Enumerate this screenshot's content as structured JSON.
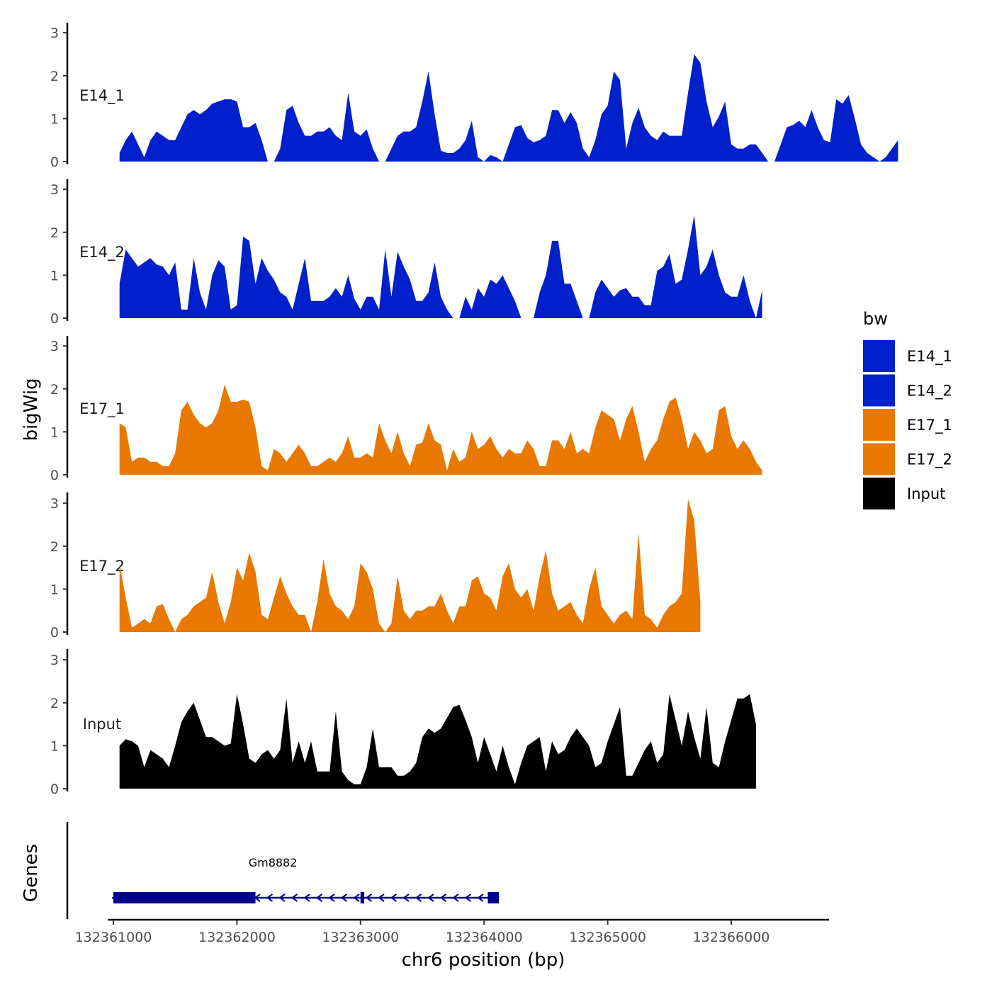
{
  "chart_data": {
    "type": "area",
    "ylabel": "bigWig",
    "xlabel": "chr6 position (bp)",
    "xlim": [
      132360600,
      132366700
    ],
    "ylim": [
      0,
      3.2
    ],
    "y_ticks": [
      0,
      1,
      2,
      3
    ],
    "x_ticks": [
      132361000,
      132362000,
      132363000,
      132364000,
      132365000,
      132366000
    ],
    "x_tick_labels": [
      "132361000",
      "132362000",
      "132363000",
      "132364000",
      "132365000",
      "132366000"
    ],
    "legend": {
      "title": "bw",
      "entries": [
        {
          "name": "E14_1",
          "color": "#0020cc"
        },
        {
          "name": "E14_2",
          "color": "#0020cc"
        },
        {
          "name": "E17_1",
          "color": "#e87800"
        },
        {
          "name": "E17_2",
          "color": "#e87800"
        },
        {
          "name": "Input",
          "color": "#000000"
        }
      ]
    },
    "tracks": [
      {
        "name": "E14_1",
        "color": "#0020cc",
        "x_start": 132361050,
        "x_step": 50,
        "values": [
          0.2,
          0.5,
          0.7,
          0.4,
          0.1,
          0.5,
          0.7,
          0.6,
          0.5,
          0.5,
          0.8,
          1.1,
          1.2,
          1.1,
          1.2,
          1.35,
          1.4,
          1.45,
          1.45,
          1.4,
          0.8,
          0.8,
          0.9,
          0.5,
          0,
          0,
          0.3,
          1.2,
          1.3,
          0.9,
          0.6,
          0.6,
          0.7,
          0.7,
          0.8,
          0.6,
          0.5,
          1.6,
          0.7,
          0.6,
          0.75,
          0.3,
          0,
          0,
          0.3,
          0.6,
          0.7,
          0.7,
          0.8,
          1.4,
          2.1,
          1.1,
          0.25,
          0.2,
          0.2,
          0.3,
          0.5,
          0.95,
          0.1,
          0,
          0.15,
          0.1,
          0,
          0.4,
          0.8,
          0.85,
          0.55,
          0.45,
          0.5,
          0.6,
          1.2,
          1.2,
          0.9,
          1.15,
          0.9,
          0.3,
          0.1,
          0.5,
          1.1,
          1.3,
          2.1,
          1.9,
          0.3,
          0.9,
          1.25,
          0.8,
          0.6,
          0.5,
          0.7,
          0.6,
          0.6,
          0.6,
          1.6,
          2.5,
          2.3,
          1.4,
          0.8,
          1.05,
          1.4,
          0.4,
          0.3,
          0.3,
          0.4,
          0.4,
          0.2,
          0,
          0,
          0.4,
          0.8,
          0.85,
          0.95,
          0.8,
          1.2,
          0.8,
          0.5,
          0.45,
          1.45,
          1.35,
          1.55,
          1.0,
          0.4,
          0.2,
          0.1,
          0,
          0.1,
          0.3,
          0.5
        ]
      },
      {
        "name": "E14_2",
        "color": "#0020cc",
        "x_start": 132361050,
        "x_step": 50,
        "values": [
          0.8,
          1.6,
          1.4,
          1.2,
          1.3,
          1.4,
          1.25,
          1.2,
          1.0,
          1.3,
          0.2,
          0.2,
          1.4,
          0.6,
          0.2,
          1.0,
          1.35,
          1.2,
          0.2,
          0.3,
          1.9,
          1.8,
          0.8,
          1.4,
          1.1,
          0.9,
          0.6,
          0.5,
          0.2,
          0.8,
          1.4,
          0.4,
          0.4,
          0.4,
          0.5,
          0.7,
          0.5,
          1.0,
          0.45,
          0.2,
          0.5,
          0.5,
          0.2,
          1.6,
          0.5,
          1.55,
          1.2,
          0.9,
          0.4,
          0.4,
          0.6,
          1.3,
          0.5,
          0.2,
          0,
          0,
          0.5,
          0.2,
          0.7,
          0.5,
          0.9,
          0.8,
          1.0,
          0.7,
          0.4,
          0,
          0,
          0,
          0.6,
          1.0,
          1.8,
          1.8,
          0.8,
          0.8,
          0.4,
          0,
          0,
          0.6,
          0.9,
          0.7,
          0.5,
          0.65,
          0.7,
          0.5,
          0.5,
          0.3,
          0.3,
          1.1,
          1.2,
          1.5,
          0.8,
          0.9,
          1.6,
          2.4,
          1.0,
          1.2,
          1.6,
          1.0,
          0.6,
          0.5,
          0.5,
          1.0,
          0.4,
          0,
          0.65
        ]
      },
      {
        "name": "E17_1",
        "color": "#e87800",
        "x_start": 132361050,
        "x_step": 50,
        "values": [
          1.2,
          1.1,
          0.3,
          0.4,
          0.4,
          0.3,
          0.3,
          0.2,
          0.2,
          0.5,
          1.5,
          1.7,
          1.4,
          1.2,
          1.1,
          1.2,
          1.5,
          2.1,
          1.7,
          1.7,
          1.75,
          1.7,
          1.1,
          0.2,
          0.1,
          0.6,
          0.5,
          0.3,
          0.5,
          0.7,
          0.5,
          0.2,
          0.2,
          0.3,
          0.4,
          0.3,
          0.5,
          0.9,
          0.4,
          0.4,
          0.5,
          0.4,
          1.2,
          0.8,
          0.5,
          1.0,
          0.5,
          0.2,
          0.7,
          0.75,
          1.2,
          0.8,
          0.7,
          0.1,
          0.6,
          0.3,
          0.4,
          1.0,
          0.6,
          0.7,
          0.9,
          0.6,
          0.4,
          0.6,
          0.5,
          0.5,
          0.8,
          0.6,
          0.2,
          0.2,
          0.8,
          0.8,
          0.6,
          1.0,
          0.5,
          0.6,
          0.5,
          1.1,
          1.5,
          1.4,
          1.3,
          0.8,
          1.3,
          1.6,
          1.0,
          0.3,
          0.6,
          0.8,
          1.3,
          1.7,
          1.8,
          1.3,
          0.6,
          1.0,
          0.8,
          0.5,
          0.6,
          1.5,
          1.6,
          0.9,
          0.6,
          0.8,
          0.6,
          0.3,
          0.1
        ]
      },
      {
        "name": "E17_2",
        "color": "#e87800",
        "x_start": 132361050,
        "x_step": 50,
        "values": [
          1.6,
          0.8,
          0.1,
          0.2,
          0.3,
          0.2,
          0.6,
          0.65,
          0.3,
          0,
          0.3,
          0.4,
          0.6,
          0.7,
          0.8,
          1.4,
          0.7,
          0.2,
          0.7,
          1.5,
          1.2,
          1.85,
          1.4,
          0.4,
          0.3,
          0.8,
          1.3,
          0.9,
          0.6,
          0.4,
          0.4,
          0,
          0.7,
          1.7,
          0.9,
          0.6,
          0.5,
          0.3,
          0.6,
          1.6,
          1.4,
          1.0,
          0.2,
          0,
          0.2,
          1.3,
          0.5,
          0.3,
          0.5,
          0.5,
          0.6,
          0.6,
          0.9,
          0.5,
          0.2,
          0.6,
          0.6,
          1.2,
          1.3,
          0.9,
          0.8,
          0.5,
          1.3,
          1.6,
          1.0,
          0.8,
          1.0,
          0.5,
          1.3,
          1.9,
          0.9,
          0.5,
          0.6,
          0.7,
          0.4,
          0.2,
          1.0,
          1.5,
          0.6,
          0.4,
          0.2,
          0.4,
          0.5,
          0.3,
          2.3,
          0.4,
          0.3,
          0.1,
          0.4,
          0.6,
          0.7,
          0.9,
          3.1,
          2.6,
          0.7
        ]
      },
      {
        "name": "Input",
        "color": "#000000",
        "x_start": 132361050,
        "x_step": 50,
        "values": [
          1.0,
          1.15,
          1.1,
          1.0,
          0.5,
          0.9,
          0.8,
          0.7,
          0.5,
          1.0,
          1.55,
          1.8,
          2.0,
          1.6,
          1.2,
          1.2,
          1.1,
          1.0,
          1.05,
          2.2,
          1.5,
          0.7,
          0.6,
          0.8,
          0.9,
          0.7,
          0.9,
          2.1,
          0.6,
          1.1,
          0.6,
          1.1,
          0.4,
          0.4,
          0.4,
          1.8,
          0.4,
          0.2,
          0.1,
          0.1,
          0.5,
          1.4,
          0.5,
          0.5,
          0.5,
          0.3,
          0.3,
          0.4,
          0.6,
          1.2,
          1.4,
          1.3,
          1.4,
          1.65,
          1.9,
          1.95,
          1.6,
          1.2,
          0.6,
          1.2,
          0.8,
          0.4,
          1.0,
          0.5,
          0.1,
          0.6,
          1.0,
          1.1,
          1.2,
          0.4,
          1.1,
          0.8,
          0.9,
          1.2,
          1.4,
          1.2,
          1.0,
          0.5,
          0.6,
          1.1,
          1.5,
          1.9,
          0.3,
          0.3,
          0.6,
          0.9,
          1.1,
          0.6,
          0.8,
          2.2,
          1.6,
          1.0,
          1.8,
          1.2,
          0.7,
          1.9,
          0.6,
          0.5,
          1.1,
          1.6,
          2.1,
          2.1,
          2.2,
          1.5
        ]
      }
    ],
    "genes": [
      {
        "name": "Gm8882",
        "start": 132361000,
        "end": 132364120,
        "strand": "-",
        "exons": [
          {
            "start": 132361000,
            "end": 132362150
          },
          {
            "start": 132363000,
            "end": 132363030
          },
          {
            "start": 132364030,
            "end": 132364120
          }
        ]
      }
    ]
  },
  "labels": {
    "genes_track": "Genes",
    "ylabel": "bigWig",
    "xlabel": "chr6 position (bp)",
    "legend_title": "bw"
  }
}
